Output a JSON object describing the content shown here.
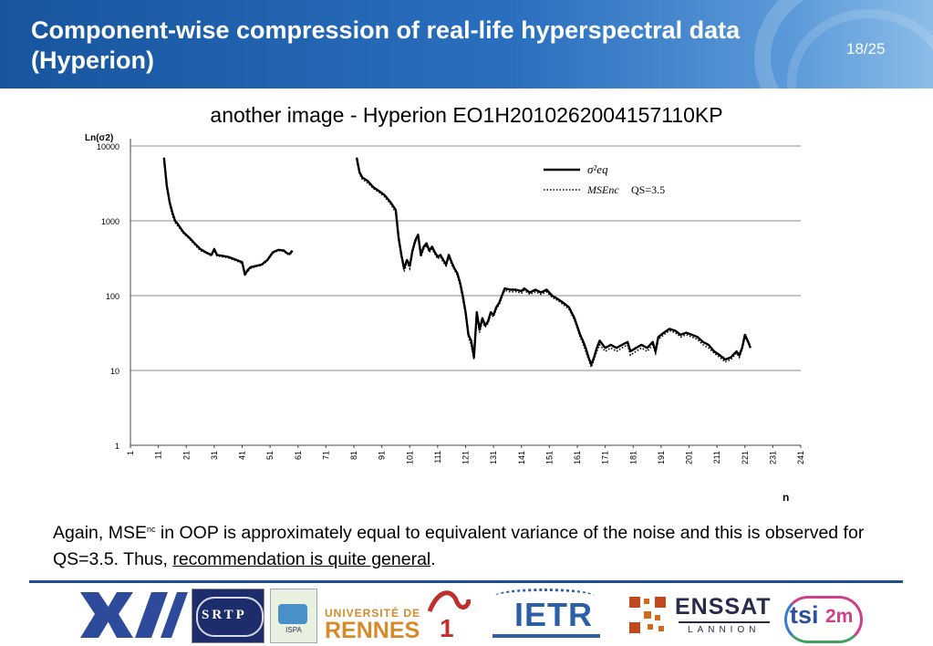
{
  "header": {
    "title": "Component-wise compression of real-life hyperspectral data (Hyperion)",
    "page_number": "18/25"
  },
  "subtitle": "another image - Hyperion EO1H2010262004157110KP",
  "chart_data": {
    "type": "line",
    "ylabel": "Ln(σ2)",
    "xlabel": "n",
    "yscale": "log",
    "ylim": [
      1,
      10000
    ],
    "xlim": [
      1,
      241
    ],
    "y_ticks": [
      "10000",
      "1000",
      "100",
      "10",
      "1"
    ],
    "x_ticks": [
      "1",
      "11",
      "21",
      "31",
      "41",
      "51",
      "61",
      "71",
      "81",
      "91",
      "101",
      "111",
      "121",
      "131",
      "141",
      "151",
      "161",
      "171",
      "181",
      "191",
      "201",
      "211",
      "221",
      "231",
      "241"
    ],
    "grid": "horizontal",
    "legend_position": "top-right",
    "legend": {
      "series1_label": "σ²eq",
      "series2_label": "MSEnc",
      "qs_note": "QS=3.5"
    },
    "series": [
      {
        "name": "σ²eq",
        "style": "solid",
        "segments": [
          [
            [
              13,
              7000
            ],
            [
              14,
              3000
            ],
            [
              15,
              1800
            ],
            [
              16,
              1300
            ],
            [
              17,
              1000
            ],
            [
              18,
              900
            ],
            [
              20,
              700
            ],
            [
              22,
              600
            ],
            [
              24,
              500
            ],
            [
              26,
              420
            ],
            [
              28,
              380
            ],
            [
              30,
              350
            ],
            [
              31,
              420
            ],
            [
              32,
              350
            ],
            [
              34,
              340
            ],
            [
              36,
              330
            ],
            [
              38,
              310
            ],
            [
              40,
              290
            ],
            [
              41,
              280
            ],
            [
              42,
              190
            ],
            [
              43,
              220
            ],
            [
              44,
              240
            ],
            [
              46,
              250
            ],
            [
              48,
              260
            ],
            [
              50,
              300
            ],
            [
              52,
              380
            ],
            [
              54,
              410
            ],
            [
              56,
              400
            ],
            [
              57,
              370
            ],
            [
              58,
              360
            ],
            [
              59,
              400
            ]
          ],
          [
            [
              82,
              7000
            ],
            [
              83,
              4500
            ],
            [
              84,
              3800
            ],
            [
              86,
              3400
            ],
            [
              88,
              2800
            ],
            [
              90,
              2500
            ],
            [
              92,
              2200
            ],
            [
              94,
              1800
            ],
            [
              96,
              1400
            ],
            [
              97,
              600
            ],
            [
              98,
              350
            ],
            [
              99,
              230
            ],
            [
              100,
              300
            ],
            [
              101,
              250
            ],
            [
              102,
              400
            ],
            [
              103,
              550
            ],
            [
              104,
              650
            ],
            [
              105,
              350
            ],
            [
              106,
              450
            ],
            [
              107,
              500
            ],
            [
              108,
              400
            ],
            [
              109,
              450
            ],
            [
              110,
              380
            ],
            [
              111,
              330
            ],
            [
              112,
              350
            ],
            [
              113,
              300
            ],
            [
              114,
              260
            ],
            [
              115,
              350
            ],
            [
              116,
              280
            ],
            [
              117,
              230
            ],
            [
              118,
              200
            ],
            [
              119,
              150
            ],
            [
              120,
              100
            ],
            [
              121,
              60
            ],
            [
              122,
              30
            ],
            [
              123,
              25
            ],
            [
              124,
              15
            ],
            [
              125,
              60
            ],
            [
              126,
              35
            ],
            [
              127,
              50
            ],
            [
              128,
              40
            ],
            [
              129,
              45
            ],
            [
              130,
              60
            ],
            [
              131,
              55
            ],
            [
              132,
              70
            ],
            [
              133,
              80
            ],
            [
              134,
              100
            ],
            [
              135,
              125
            ],
            [
              137,
              120
            ],
            [
              139,
              120
            ],
            [
              141,
              115
            ],
            [
              142,
              125
            ],
            [
              144,
              110
            ],
            [
              146,
              120
            ],
            [
              148,
              110
            ],
            [
              150,
              120
            ],
            [
              152,
              100
            ],
            [
              154,
              90
            ],
            [
              156,
              80
            ],
            [
              158,
              70
            ],
            [
              160,
              50
            ],
            [
              162,
              30
            ],
            [
              163,
              25
            ],
            [
              164,
              20
            ],
            [
              165,
              15
            ],
            [
              166,
              12
            ],
            [
              167,
              15
            ],
            [
              168,
              20
            ],
            [
              169,
              25
            ],
            [
              171,
              20
            ],
            [
              173,
              22
            ],
            [
              175,
              20
            ],
            [
              177,
              22
            ],
            [
              179,
              24
            ],
            [
              180,
              18
            ],
            [
              182,
              20
            ],
            [
              184,
              22
            ],
            [
              186,
              20
            ],
            [
              188,
              24
            ],
            [
              189,
              18
            ],
            [
              190,
              28
            ],
            [
              192,
              32
            ],
            [
              194,
              36
            ],
            [
              196,
              34
            ],
            [
              198,
              30
            ],
            [
              200,
              32
            ],
            [
              202,
              30
            ],
            [
              204,
              28
            ],
            [
              206,
              24
            ],
            [
              208,
              22
            ],
            [
              210,
              18
            ],
            [
              212,
              16
            ],
            [
              214,
              14
            ],
            [
              216,
              15
            ],
            [
              218,
              18
            ],
            [
              219,
              16
            ],
            [
              220,
              20
            ],
            [
              221,
              30
            ],
            [
              222,
              25
            ],
            [
              223,
              20
            ]
          ]
        ]
      },
      {
        "name": "MSEnc",
        "style": "dotted",
        "segments": [
          [
            [
              13,
              6500
            ],
            [
              14,
              2800
            ],
            [
              15,
              1700
            ],
            [
              16,
              1200
            ],
            [
              17,
              950
            ],
            [
              18,
              850
            ],
            [
              20,
              680
            ],
            [
              22,
              580
            ],
            [
              24,
              480
            ],
            [
              26,
              400
            ],
            [
              28,
              370
            ],
            [
              30,
              340
            ],
            [
              31,
              400
            ],
            [
              32,
              340
            ],
            [
              34,
              330
            ],
            [
              36,
              320
            ],
            [
              38,
              300
            ],
            [
              40,
              280
            ],
            [
              41,
              270
            ],
            [
              42,
              200
            ],
            [
              43,
              210
            ],
            [
              44,
              230
            ],
            [
              46,
              245
            ],
            [
              48,
              255
            ],
            [
              50,
              290
            ],
            [
              52,
              370
            ],
            [
              54,
              400
            ],
            [
              56,
              390
            ],
            [
              57,
              360
            ],
            [
              58,
              350
            ],
            [
              59,
              390
            ]
          ],
          [
            [
              82,
              6500
            ],
            [
              83,
              4300
            ],
            [
              84,
              3600
            ],
            [
              86,
              3200
            ],
            [
              88,
              2700
            ],
            [
              90,
              2400
            ],
            [
              92,
              2100
            ],
            [
              94,
              1700
            ],
            [
              96,
              1300
            ],
            [
              97,
              550
            ],
            [
              98,
              330
            ],
            [
              99,
              210
            ],
            [
              100,
              280
            ],
            [
              101,
              230
            ],
            [
              102,
              380
            ],
            [
              103,
              520
            ],
            [
              104,
              600
            ],
            [
              105,
              330
            ],
            [
              106,
              420
            ],
            [
              107,
              470
            ],
            [
              108,
              380
            ],
            [
              109,
              420
            ],
            [
              110,
              360
            ],
            [
              111,
              310
            ],
            [
              112,
              330
            ],
            [
              113,
              280
            ],
            [
              114,
              250
            ],
            [
              115,
              330
            ],
            [
              116,
              260
            ],
            [
              117,
              220
            ],
            [
              118,
              190
            ],
            [
              119,
              140
            ],
            [
              120,
              90
            ],
            [
              121,
              55
            ],
            [
              122,
              28
            ],
            [
              123,
              22
            ],
            [
              124,
              14
            ],
            [
              125,
              55
            ],
            [
              126,
              32
            ],
            [
              127,
              46
            ],
            [
              128,
              38
            ],
            [
              129,
              42
            ],
            [
              130,
              56
            ],
            [
              131,
              52
            ],
            [
              132,
              66
            ],
            [
              133,
              75
            ],
            [
              134,
              95
            ],
            [
              135,
              118
            ],
            [
              137,
              112
            ],
            [
              139,
              113
            ],
            [
              141,
              108
            ],
            [
              142,
              118
            ],
            [
              144,
              104
            ],
            [
              146,
              112
            ],
            [
              148,
              104
            ],
            [
              150,
              112
            ],
            [
              152,
              95
            ],
            [
              154,
              86
            ],
            [
              156,
              76
            ],
            [
              158,
              66
            ],
            [
              160,
              47
            ],
            [
              162,
              28
            ],
            [
              163,
              23
            ],
            [
              164,
              18
            ],
            [
              165,
              14
            ],
            [
              166,
              11
            ],
            [
              167,
              14
            ],
            [
              168,
              18
            ],
            [
              169,
              22
            ],
            [
              171,
              18
            ],
            [
              173,
              20
            ],
            [
              175,
              18
            ],
            [
              177,
              20
            ],
            [
              179,
              22
            ],
            [
              180,
              16
            ],
            [
              182,
              18
            ],
            [
              184,
              20
            ],
            [
              186,
              18
            ],
            [
              188,
              22
            ],
            [
              189,
              17
            ],
            [
              190,
              26
            ],
            [
              192,
              30
            ],
            [
              194,
              34
            ],
            [
              196,
              32
            ],
            [
              198,
              28
            ],
            [
              200,
              30
            ],
            [
              202,
              28
            ],
            [
              204,
              26
            ],
            [
              206,
              22
            ],
            [
              208,
              20
            ],
            [
              210,
              17
            ],
            [
              212,
              15
            ],
            [
              214,
              13
            ],
            [
              216,
              14
            ],
            [
              218,
              17
            ],
            [
              219,
              15
            ],
            [
              220,
              19
            ],
            [
              221,
              28
            ],
            [
              222,
              24
            ],
            [
              223,
              22
            ]
          ]
        ]
      }
    ]
  },
  "caption": {
    "part1": "Again, MSE",
    "superscript": "nc",
    "part2": " in OOP is approximately equal to equivalent variance of the noise and this is observed for QS=3.5. Thus, ",
    "underlined": "recommendation is quite general",
    "part3": "."
  },
  "logos": {
    "srtp": "SRTP",
    "ispa": "ISPA",
    "rennes_line1": "UNIVERSITÉ DE",
    "rennes_line2": "RENNES",
    "rennes_num": "1",
    "ietr": "IETR",
    "enssat": "ENSSAT",
    "lannion": "LANNION",
    "tsi": "tsi",
    "tsi2": "2m"
  },
  "colors": {
    "header": "#2a6fbe",
    "rule": "#1e4f8f",
    "rennes_red": "#c0302a",
    "rennes_orange": "#d88a2a",
    "ietr_blue": "#2b5fa8"
  }
}
